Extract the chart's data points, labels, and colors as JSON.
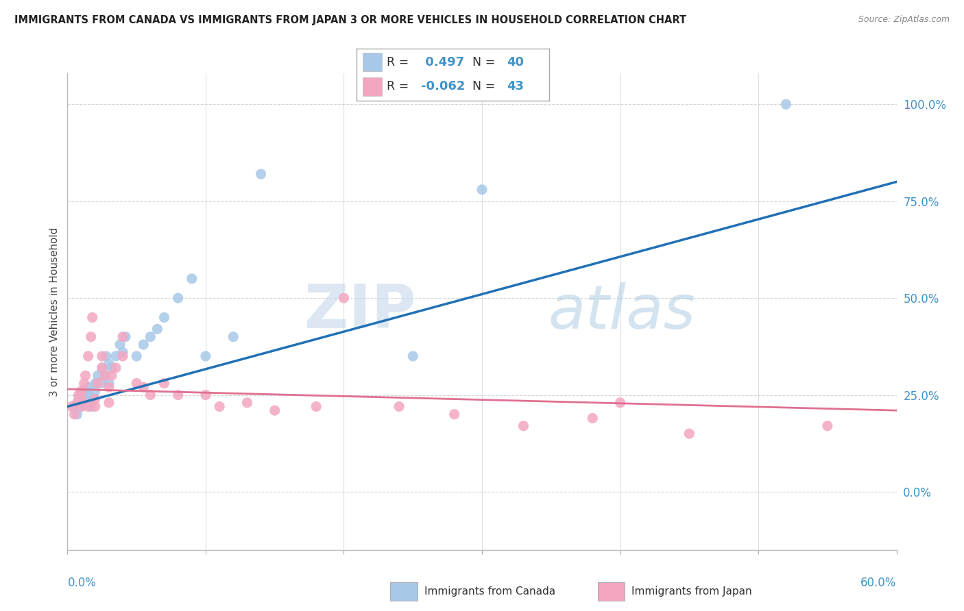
{
  "title": "IMMIGRANTS FROM CANADA VS IMMIGRANTS FROM JAPAN 3 OR MORE VEHICLES IN HOUSEHOLD CORRELATION CHART",
  "source": "Source: ZipAtlas.com",
  "ylabel": "3 or more Vehicles in Household",
  "ylabel_right_ticks": [
    "0.0%",
    "25.0%",
    "50.0%",
    "75.0%",
    "100.0%"
  ],
  "ylabel_right_vals": [
    0.0,
    0.25,
    0.5,
    0.75,
    1.0
  ],
  "xmin": 0.0,
  "xmax": 0.6,
  "ymin": -0.15,
  "ymax": 1.08,
  "canada_R": 0.497,
  "canada_N": 40,
  "japan_R": -0.062,
  "japan_N": 43,
  "canada_color": "#a8c8e8",
  "canada_line_color": "#2171b5",
  "japan_color": "#f4a6c0",
  "japan_line_color": "#e07090",
  "canada_trendline_dashed_color": "#aaaaaa",
  "watermark_zip": "ZIP",
  "watermark_atlas": "atlas",
  "background_color": "#ffffff",
  "grid_color": "#cccccc",
  "legend_border_color": "#aaaaaa",
  "axis_label_color": "#4292c6",
  "title_color": "#222222",
  "source_color": "#888888",
  "bottom_label_color": "#333333",
  "canada_scatter_x": [
    0.005,
    0.007,
    0.008,
    0.01,
    0.01,
    0.01,
    0.012,
    0.013,
    0.015,
    0.015,
    0.016,
    0.017,
    0.018,
    0.02,
    0.02,
    0.022,
    0.025,
    0.025,
    0.027,
    0.028,
    0.03,
    0.03,
    0.032,
    0.035,
    0.038,
    0.04,
    0.042,
    0.05,
    0.055,
    0.06,
    0.065,
    0.07,
    0.08,
    0.09,
    0.1,
    0.12,
    0.14,
    0.25,
    0.3,
    0.52
  ],
  "canada_scatter_y": [
    0.22,
    0.2,
    0.24,
    0.22,
    0.23,
    0.25,
    0.24,
    0.26,
    0.23,
    0.27,
    0.25,
    0.22,
    0.24,
    0.26,
    0.28,
    0.3,
    0.32,
    0.28,
    0.3,
    0.35,
    0.28,
    0.33,
    0.32,
    0.35,
    0.38,
    0.36,
    0.4,
    0.35,
    0.38,
    0.4,
    0.42,
    0.45,
    0.5,
    0.55,
    0.35,
    0.4,
    0.82,
    0.35,
    0.78,
    1.0
  ],
  "japan_scatter_x": [
    0.003,
    0.005,
    0.007,
    0.008,
    0.01,
    0.01,
    0.01,
    0.012,
    0.013,
    0.015,
    0.015,
    0.017,
    0.018,
    0.02,
    0.02,
    0.022,
    0.025,
    0.025,
    0.027,
    0.03,
    0.03,
    0.032,
    0.035,
    0.04,
    0.04,
    0.05,
    0.055,
    0.06,
    0.07,
    0.08,
    0.1,
    0.11,
    0.13,
    0.15,
    0.18,
    0.2,
    0.24,
    0.28,
    0.33,
    0.38,
    0.4,
    0.45,
    0.55
  ],
  "japan_scatter_y": [
    0.22,
    0.2,
    0.23,
    0.25,
    0.22,
    0.24,
    0.26,
    0.28,
    0.3,
    0.22,
    0.35,
    0.4,
    0.45,
    0.22,
    0.24,
    0.28,
    0.32,
    0.35,
    0.3,
    0.23,
    0.27,
    0.3,
    0.32,
    0.35,
    0.4,
    0.28,
    0.27,
    0.25,
    0.28,
    0.25,
    0.25,
    0.22,
    0.23,
    0.21,
    0.22,
    0.5,
    0.22,
    0.2,
    0.17,
    0.19,
    0.23,
    0.15,
    0.17
  ],
  "canada_trend_x0": 0.0,
  "canada_trend_x1": 0.6,
  "canada_trend_y0": 0.22,
  "canada_trend_y1": 0.8,
  "japan_trend_x0": 0.0,
  "japan_trend_x1": 0.6,
  "japan_trend_y0": 0.265,
  "japan_trend_y1": 0.21
}
